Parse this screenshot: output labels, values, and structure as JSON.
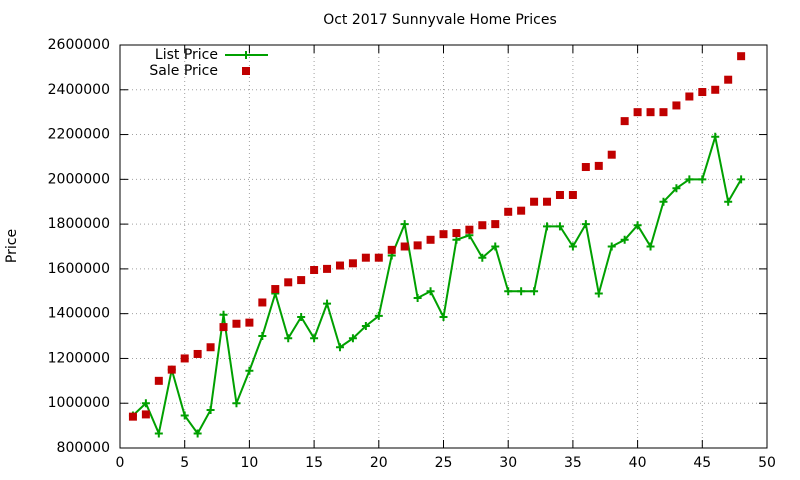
{
  "chart_data": {
    "type": "line",
    "title": "Oct 2017 Sunnyvale Home Prices",
    "y_label": "Price",
    "x": [
      1,
      2,
      3,
      4,
      5,
      6,
      7,
      8,
      9,
      10,
      11,
      12,
      13,
      14,
      15,
      16,
      17,
      18,
      19,
      20,
      21,
      22,
      23,
      24,
      25,
      26,
      27,
      28,
      29,
      30,
      31,
      32,
      33,
      34,
      35,
      36,
      37,
      38,
      39,
      40,
      41,
      42,
      43,
      44,
      45,
      46,
      47,
      48
    ],
    "series": [
      {
        "name": "List Price",
        "color": "#00a000",
        "mode": "lines+markers",
        "values": [
          945000,
          1000000,
          865000,
          1150000,
          945000,
          865000,
          970000,
          1395000,
          1000000,
          1145000,
          1300000,
          1490000,
          1290000,
          1385000,
          1290000,
          1445000,
          1250000,
          1290000,
          1345000,
          1390000,
          1660000,
          1800000,
          1470000,
          1500000,
          1385000,
          1730000,
          1750000,
          1650000,
          1700000,
          1500000,
          1500000,
          1500000,
          1790000,
          1790000,
          1700000,
          1800000,
          1490000,
          1700000,
          1730000,
          1795000,
          1700000,
          1900000,
          1960000,
          2000000,
          2000000,
          2190000,
          1900000,
          2000000
        ]
      },
      {
        "name": "Sale Price",
        "color": "#c00000",
        "mode": "markers",
        "values": [
          940000,
          950000,
          1100000,
          1150000,
          1200000,
          1220000,
          1250000,
          1340000,
          1355000,
          1360000,
          1450000,
          1510000,
          1540000,
          1550000,
          1595000,
          1600000,
          1615000,
          1625000,
          1650000,
          1650000,
          1685000,
          1700000,
          1705000,
          1730000,
          1755000,
          1760000,
          1775000,
          1795000,
          1800000,
          1855000,
          1860000,
          1900000,
          1900000,
          1930000,
          1930000,
          2055000,
          2060000,
          2110000,
          2260000,
          2300000,
          2300000,
          2300000,
          2330000,
          2370000,
          2390000,
          2400000,
          2445000,
          2550000
        ]
      }
    ],
    "xlim": [
      0,
      50
    ],
    "xticks": [
      0,
      5,
      10,
      15,
      20,
      25,
      30,
      35,
      40,
      45,
      50
    ],
    "ylim": [
      800000,
      2600000
    ],
    "yticks": [
      800000,
      1000000,
      1200000,
      1400000,
      1600000,
      1800000,
      2000000,
      2200000,
      2400000,
      2600000
    ],
    "grid": true,
    "legend": "top-left"
  }
}
